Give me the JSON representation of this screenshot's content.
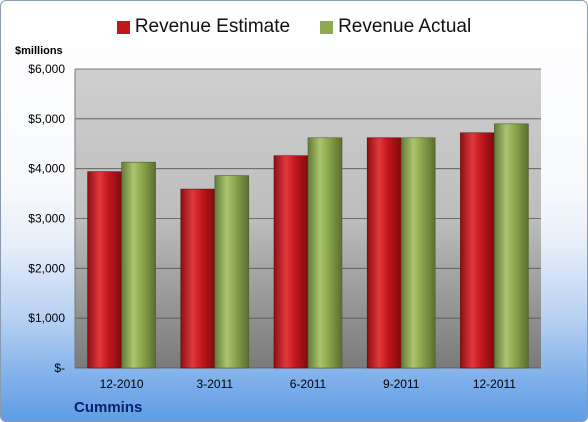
{
  "colors": {
    "estimate": "#c0171c",
    "actual": "#8eaa4c",
    "plot_bg": "#c8c8c8"
  },
  "units_label": "$millions",
  "company": "Cummins",
  "chart_data": {
    "type": "bar",
    "categories": [
      "12-2010",
      "3-2011",
      "6-2011",
      "9-2011",
      "12-2011"
    ],
    "series": [
      {
        "name": "Revenue Estimate",
        "values": [
          3940,
          3590,
          4260,
          4620,
          4720
        ]
      },
      {
        "name": "Revenue Actual",
        "values": [
          4130,
          3860,
          4620,
          4620,
          4900
        ]
      }
    ],
    "ylim": [
      0,
      6000
    ],
    "yticks": [
      0,
      1000,
      2000,
      3000,
      4000,
      5000,
      6000
    ],
    "ytick_labels": [
      "$-",
      "$1,000",
      "$2,000",
      "$3,000",
      "$4,000",
      "$5,000",
      "$6,000"
    ],
    "legend_position": "top",
    "grid": true
  }
}
